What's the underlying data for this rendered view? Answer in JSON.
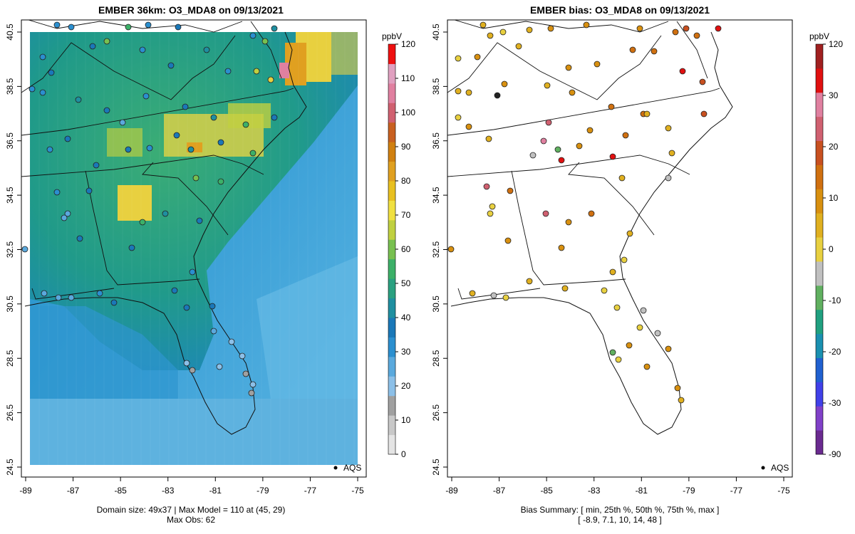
{
  "left_panel": {
    "title": "EMBER 36km: O3_MDA8 on 09/13/2021",
    "caption_line1": "Domain size: 49x37 | Max Model = 110 at (45, 29)",
    "caption_line2": "Max Obs: 62",
    "legend_label": "AQS",
    "colorbar": {
      "unit": "ppbV",
      "ticks": [
        "0",
        "10",
        "20",
        "30",
        "40",
        "50",
        "60",
        "70",
        "80",
        "90",
        "100",
        "110",
        "120"
      ],
      "colors": [
        "#e4e4e4",
        "#c8c8c8",
        "#a0a0a0",
        "#8cc0e8",
        "#5aa9dd",
        "#2b8fcf",
        "#1a78b8",
        "#1f8fa0",
        "#2aa080",
        "#3cb068",
        "#78c050",
        "#c0d040",
        "#f0e040",
        "#e8c020",
        "#e0a020",
        "#d08010",
        "#c86020",
        "#d06070",
        "#e080a0",
        "#e0a0c0",
        "#ee1010"
      ]
    }
  },
  "right_panel": {
    "title": "EMBER bias: O3_MDA8 on 09/13/2021",
    "caption_line1": "Bias Summary: [ min, 25th %, 50th %, 75th %, max ]",
    "caption_line2": "[ -8.9,   7.1,   10,   14,   48 ]",
    "legend_label": "AQS",
    "colorbar": {
      "unit": "ppbV",
      "ticks": [
        "-90",
        "-30",
        "-20",
        "-10",
        "0",
        "10",
        "20",
        "30",
        "120"
      ],
      "colors": [
        "#6a2a90",
        "#8040c8",
        "#4040e8",
        "#2060d0",
        "#1a90b0",
        "#20a080",
        "#60b060",
        "#c0c0c0",
        "#e8d040",
        "#e0b020",
        "#d89010",
        "#d07010",
        "#c85020",
        "#d06070",
        "#e080a0",
        "#e01010",
        "#a02020"
      ]
    }
  },
  "axes": {
    "x_ticks": [
      "-89",
      "-87",
      "-85",
      "-83",
      "-81",
      "-79",
      "-77",
      "-75"
    ],
    "y_ticks": [
      "24.5",
      "26.5",
      "28.5",
      "30.5",
      "32.5",
      "34.5",
      "36.5",
      "38.5",
      "40.5"
    ]
  }
}
